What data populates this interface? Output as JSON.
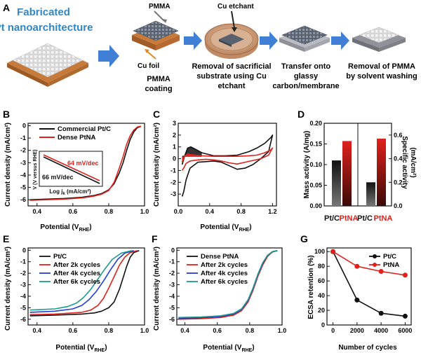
{
  "colors": {
    "black": "#111111",
    "red": "#e0211c",
    "blue": "#1f3fd8",
    "teal": "#1a9a90",
    "arrow": "#3f7fd6",
    "title": "#2f86c8"
  },
  "panel_a": {
    "label": "A",
    "title_line1": "Fabricated",
    "title_line2": "Pt nanoarchitecture",
    "pmma_label": "PMMA",
    "cufoil_label": "Cu foil",
    "cuetch_label": "Cu etchant",
    "step1_line1": "PMMA",
    "step1_line2": "coating",
    "step2_line1": "Removal of sacrificial",
    "step2_line2": "substrate using Cu",
    "step2_line3": "etchant",
    "step3_line1": "Transfer onto",
    "step3_line2": "glassy",
    "step3_line3": "carbon/membrane",
    "step4_line1": "Removal of PMMA",
    "step4_line2": "by solvent washing"
  },
  "panel_b": {
    "label": "B",
    "ylabel": "Current density (mA/cm²)",
    "xlabel": "Potential (V",
    "xsub": "RHE",
    "legend": [
      "Commercial Pt/C",
      "Dense PtNA"
    ],
    "inset_red": "64 mV/dec",
    "inset_black": "66 mV/dec",
    "inset_ylabel": "V (V versus RHE)",
    "inset_xlabel": "Log j",
    "inset_xsub": "k",
    "inset_xunit": " (mA/cm²)"
  },
  "panel_c": {
    "label": "C",
    "ylabel": "Current density (mA/cm²)",
    "xlabel": "Potential (V",
    "xsub": "RHE"
  },
  "panel_d": {
    "label": "D",
    "ylabel_left": "Mass activity (A/mg)",
    "ylabel_right": "Specific activity",
    "ylabel_right2": "(mA/cm²)",
    "cat_ptc": "Pt/C",
    "cat_ptna": "PtNA"
  },
  "panel_e": {
    "label": "E",
    "ylabel": "Current density (mA/cm²)",
    "xlabel": "Potential (V",
    "xsub": "RHE",
    "legend": [
      "Pt/C",
      "After 2k cycles",
      "After 4k cycles",
      "After 6k cycles"
    ]
  },
  "panel_f": {
    "label": "F",
    "ylabel": "Current density (mA/cm²)",
    "xlabel": "Potential (V",
    "xsub": "RHE",
    "legend": [
      "Dense PtNA",
      "After 2k cycles",
      "After 4k cycles",
      "After 6k cycles"
    ]
  },
  "panel_g": {
    "label": "G",
    "ylabel": "ECSA retention (%)",
    "xlabel": "Number of cycles",
    "legend": [
      "Pt/C",
      "PtNA"
    ]
  },
  "chart_data": [
    {
      "panel": "B",
      "type": "line",
      "xlabel": "Potential (VRHE)",
      "ylabel": "Current density (mA/cm²)",
      "xlim": [
        0.35,
        1.0
      ],
      "ylim": [
        -6.5,
        0.2
      ],
      "xticks": [
        0.4,
        0.6,
        0.8,
        1.0
      ],
      "yticks": [
        0,
        -1,
        -2,
        -3,
        -4,
        -5,
        -6
      ],
      "series": [
        {
          "name": "Commercial Pt/C",
          "color": "black",
          "x": [
            0.36,
            0.45,
            0.55,
            0.65,
            0.72,
            0.76,
            0.8,
            0.83,
            0.86,
            0.88,
            0.9,
            0.92,
            0.94,
            0.96,
            0.98
          ],
          "y": [
            -6.0,
            -5.95,
            -5.9,
            -5.8,
            -5.65,
            -5.5,
            -5.2,
            -4.7,
            -3.8,
            -3.0,
            -2.0,
            -1.1,
            -0.5,
            -0.15,
            -0.05
          ]
        },
        {
          "name": "Dense PtNA",
          "color": "red",
          "x": [
            0.36,
            0.45,
            0.55,
            0.65,
            0.72,
            0.76,
            0.8,
            0.83,
            0.86,
            0.88,
            0.9,
            0.92,
            0.94,
            0.96,
            0.98
          ],
          "y": [
            -6.05,
            -6.0,
            -5.95,
            -5.85,
            -5.7,
            -5.55,
            -5.25,
            -4.6,
            -3.4,
            -2.5,
            -1.5,
            -0.8,
            -0.35,
            -0.1,
            -0.03
          ]
        }
      ],
      "inset": {
        "series": [
          {
            "name": "Dense PtNA",
            "slope": "64 mV/dec",
            "color": "red"
          },
          {
            "name": "Commercial Pt/C",
            "slope": "66 mV/dec",
            "color": "black"
          }
        ]
      }
    },
    {
      "panel": "C",
      "type": "line",
      "xlabel": "Potential (VRHE)",
      "ylabel": "Current density (mA/cm²)",
      "xlim": [
        0.0,
        1.25
      ],
      "ylim": [
        -4.0,
        3.0
      ],
      "xticks": [
        0.0,
        0.4,
        0.8,
        1.2
      ],
      "yticks": [
        3,
        2,
        1,
        0,
        -1,
        -2,
        -3
      ],
      "series": [
        {
          "name": "Commercial Pt/C",
          "color": "black",
          "x": [
            0.05,
            0.08,
            0.12,
            0.16,
            0.22,
            0.3,
            0.45,
            0.6,
            0.75,
            0.9,
            1.0,
            1.1,
            1.18,
            1.2,
            1.15,
            1.05,
            0.95,
            0.85,
            0.75,
            0.65,
            0.55,
            0.45,
            0.35,
            0.25,
            0.15,
            0.1,
            0.07,
            0.05
          ],
          "y": [
            -0.5,
            0.2,
            0.9,
            1.0,
            0.8,
            0.5,
            0.25,
            0.25,
            0.3,
            0.6,
            0.9,
            1.3,
            1.8,
            2.0,
            0.6,
            0.0,
            -0.5,
            -0.8,
            -0.9,
            -0.6,
            -0.3,
            -0.2,
            -0.25,
            -0.3,
            -0.8,
            -1.8,
            -2.8,
            -3.2
          ]
        },
        {
          "name": "Dense PtNA",
          "color": "red",
          "x": [
            0.05,
            0.08,
            0.12,
            0.16,
            0.22,
            0.3,
            0.45,
            0.6,
            0.75,
            0.9,
            1.0,
            1.1,
            1.18,
            1.2,
            1.15,
            1.05,
            0.95,
            0.85,
            0.75,
            0.65,
            0.55,
            0.45,
            0.35,
            0.25,
            0.15,
            0.1,
            0.07,
            0.05
          ],
          "y": [
            -0.3,
            0.2,
            0.4,
            0.35,
            0.3,
            0.25,
            0.2,
            0.2,
            0.2,
            0.25,
            0.3,
            0.5,
            0.75,
            0.9,
            0.3,
            0.0,
            -0.15,
            -0.3,
            -0.45,
            -0.35,
            -0.2,
            -0.1,
            -0.05,
            -0.1,
            -0.2,
            -0.4,
            -0.8,
            -1.0
          ]
        }
      ]
    },
    {
      "panel": "D",
      "type": "bar",
      "categories": [
        "Pt/C",
        "PtNA",
        "Pt/C",
        "PtNA"
      ],
      "left_axis": {
        "ylabel": "Mass activity (A/mg)",
        "ylim": [
          0,
          0.2
        ],
        "yticks": [
          0.0,
          0.05,
          0.1,
          0.15,
          0.2
        ],
        "values": [
          0.11,
          0.157
        ]
      },
      "right_axis": {
        "ylabel": "Specific activity (mA/cm²)",
        "ylim": [
          0,
          0.7
        ],
        "yticks": [
          0.0,
          0.2,
          0.4,
          0.6
        ],
        "values": [
          0.2,
          0.57
        ]
      }
    },
    {
      "panel": "E",
      "type": "line",
      "xlabel": "Potential (VRHE)",
      "ylabel": "Current density (mA/cm²)",
      "xlim": [
        0.35,
        1.0
      ],
      "ylim": [
        -6.5,
        0.2
      ],
      "xticks": [
        0.4,
        0.6,
        0.8,
        1.0
      ],
      "yticks": [
        0,
        -1,
        -2,
        -3,
        -4,
        -5,
        -6
      ],
      "series": [
        {
          "name": "Pt/C",
          "color": "black",
          "x": [
            0.36,
            0.5,
            0.65,
            0.72,
            0.76,
            0.8,
            0.83,
            0.86,
            0.88,
            0.9,
            0.92,
            0.94,
            0.97
          ],
          "y": [
            -5.7,
            -5.65,
            -5.55,
            -5.45,
            -5.3,
            -5.0,
            -4.5,
            -3.4,
            -2.4,
            -1.4,
            -0.6,
            -0.2,
            -0.03
          ]
        },
        {
          "name": "After 2k cycles",
          "color": "red",
          "x": [
            0.36,
            0.5,
            0.65,
            0.7,
            0.74,
            0.77,
            0.8,
            0.83,
            0.86,
            0.89,
            0.92,
            0.96
          ],
          "y": [
            -5.6,
            -5.55,
            -5.4,
            -5.2,
            -4.8,
            -4.2,
            -3.3,
            -2.3,
            -1.3,
            -0.6,
            -0.2,
            -0.03
          ]
        },
        {
          "name": "After 4k cycles",
          "color": "blue",
          "x": [
            0.36,
            0.5,
            0.6,
            0.65,
            0.69,
            0.73,
            0.77,
            0.81,
            0.85,
            0.89,
            0.94
          ],
          "y": [
            -5.4,
            -5.3,
            -5.1,
            -4.8,
            -4.3,
            -3.6,
            -2.7,
            -1.7,
            -0.8,
            -0.25,
            -0.03
          ]
        },
        {
          "name": "After 6k cycles",
          "color": "teal",
          "x": [
            0.36,
            0.5,
            0.57,
            0.62,
            0.66,
            0.7,
            0.74,
            0.78,
            0.82,
            0.87,
            0.93
          ],
          "y": [
            -5.2,
            -5.1,
            -4.9,
            -4.6,
            -4.1,
            -3.4,
            -2.5,
            -1.6,
            -0.8,
            -0.25,
            -0.03
          ]
        }
      ]
    },
    {
      "panel": "F",
      "type": "line",
      "xlabel": "Potential (VRHE)",
      "ylabel": "Current density (mA/cm²)",
      "xlim": [
        0.35,
        1.0
      ],
      "ylim": [
        -6.5,
        0.2
      ],
      "xticks": [
        0.4,
        0.6,
        0.8,
        1.0
      ],
      "yticks": [
        0,
        -1,
        -2,
        -3,
        -4,
        -5,
        -6
      ],
      "series": [
        {
          "name": "Dense PtNA",
          "color": "black",
          "x": [
            0.36,
            0.5,
            0.62,
            0.7,
            0.75,
            0.79,
            0.82,
            0.85,
            0.88,
            0.91,
            0.94,
            0.97
          ],
          "y": [
            -5.95,
            -5.9,
            -5.8,
            -5.6,
            -5.2,
            -4.4,
            -3.4,
            -2.2,
            -1.2,
            -0.5,
            -0.15,
            -0.03
          ]
        },
        {
          "name": "After 2k cycles",
          "color": "red",
          "x": [
            0.36,
            0.5,
            0.62,
            0.7,
            0.75,
            0.79,
            0.82,
            0.85,
            0.88,
            0.91,
            0.94,
            0.97
          ],
          "y": [
            -6.0,
            -5.95,
            -5.85,
            -5.65,
            -5.25,
            -4.5,
            -3.5,
            -2.3,
            -1.3,
            -0.55,
            -0.15,
            -0.03
          ]
        },
        {
          "name": "After 4k cycles",
          "color": "blue",
          "x": [
            0.36,
            0.5,
            0.62,
            0.7,
            0.75,
            0.79,
            0.82,
            0.85,
            0.88,
            0.91,
            0.94,
            0.97
          ],
          "y": [
            -5.9,
            -5.85,
            -5.75,
            -5.55,
            -5.15,
            -4.35,
            -3.35,
            -2.15,
            -1.15,
            -0.45,
            -0.12,
            -0.03
          ]
        },
        {
          "name": "After 6k cycles",
          "color": "teal",
          "x": [
            0.36,
            0.5,
            0.62,
            0.7,
            0.75,
            0.79,
            0.82,
            0.85,
            0.88,
            0.91,
            0.94,
            0.97
          ],
          "y": [
            -5.85,
            -5.8,
            -5.7,
            -5.5,
            -5.1,
            -4.3,
            -3.3,
            -2.1,
            -1.1,
            -0.45,
            -0.12,
            -0.03
          ]
        }
      ]
    },
    {
      "panel": "G",
      "type": "line",
      "xlabel": "Number of cycles",
      "ylabel": "ECSA retention (%)",
      "xlim": [
        -500,
        6500
      ],
      "ylim": [
        0,
        105
      ],
      "xticks": [
        0,
        2000,
        4000,
        6000
      ],
      "yticks": [
        0,
        20,
        40,
        60,
        80,
        100
      ],
      "series": [
        {
          "name": "Pt/C",
          "color": "black",
          "x": [
            0,
            2000,
            4000,
            6000
          ],
          "y": [
            100,
            34,
            16,
            12
          ]
        },
        {
          "name": "PtNA",
          "color": "red",
          "x": [
            0,
            2000,
            4000,
            6000
          ],
          "y": [
            100,
            80,
            73,
            68
          ]
        }
      ]
    }
  ]
}
